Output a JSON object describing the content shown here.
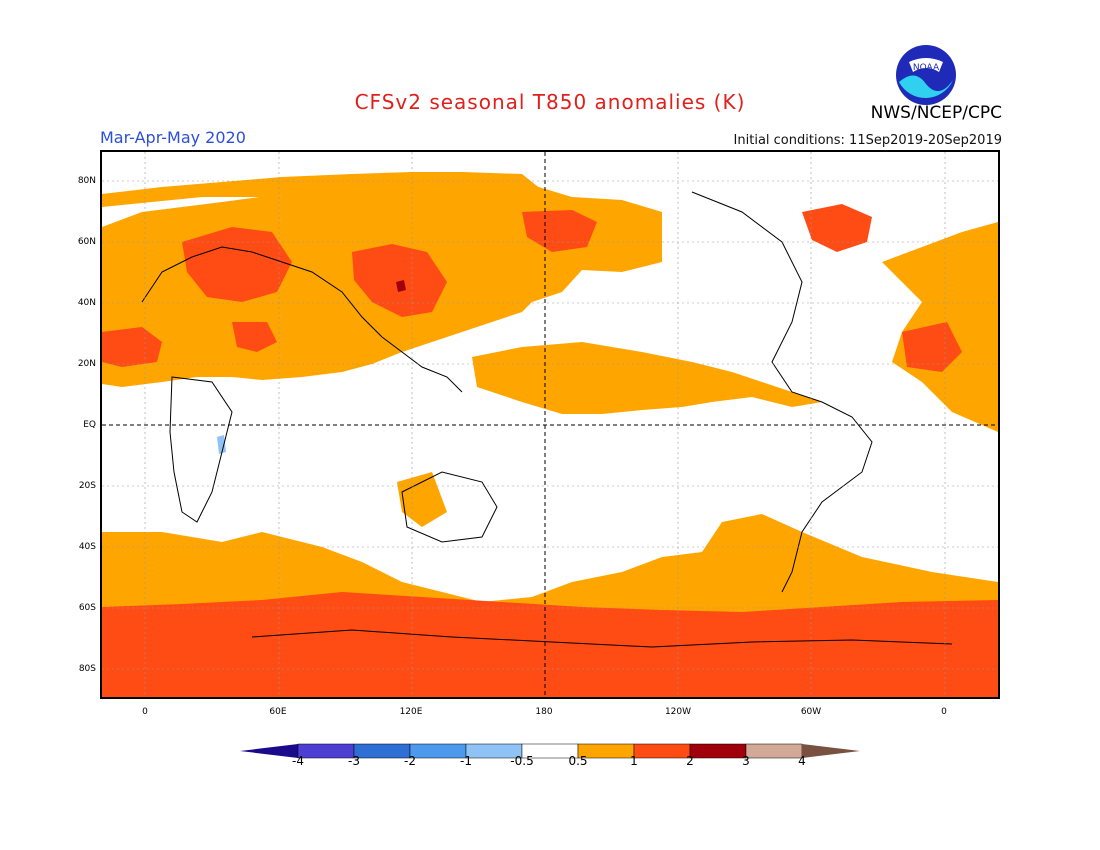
{
  "header": {
    "title": "CFSv2 seasonal T850 anomalies (K)",
    "agency": "NWS/NCEP/CPC",
    "season": "Mar-Apr-May 2020",
    "initial_conditions": "Initial conditions: 11Sep2019-20Sep2019",
    "logo_text": "NOAA"
  },
  "axes": {
    "lon_ticks": [
      "0",
      "60E",
      "120E",
      "180",
      "120W",
      "60W",
      "0"
    ],
    "lat_ticks": [
      "80N",
      "60N",
      "40N",
      "20N",
      "EQ",
      "20S",
      "40S",
      "60S",
      "80S"
    ]
  },
  "legend": {
    "labels": [
      "-4",
      "-3",
      "-2",
      "-1",
      "-0.5",
      "0.5",
      "1",
      "2",
      "3",
      "4"
    ],
    "colors": [
      "#1a0a8c",
      "#4d3fd1",
      "#2e6fd6",
      "#4d99ee",
      "#8fc3f5",
      "#ffffff",
      "#ffa500",
      "#ff4b14",
      "#a0000c",
      "#d2a896",
      "#7a5040"
    ]
  },
  "colors": {
    "warm1": "#ffa500",
    "warm2": "#ff4b14",
    "warm3": "#a0000c",
    "cold1": "#8fc3f5",
    "title": "#e0201c",
    "season": "#2b4fd6"
  }
}
